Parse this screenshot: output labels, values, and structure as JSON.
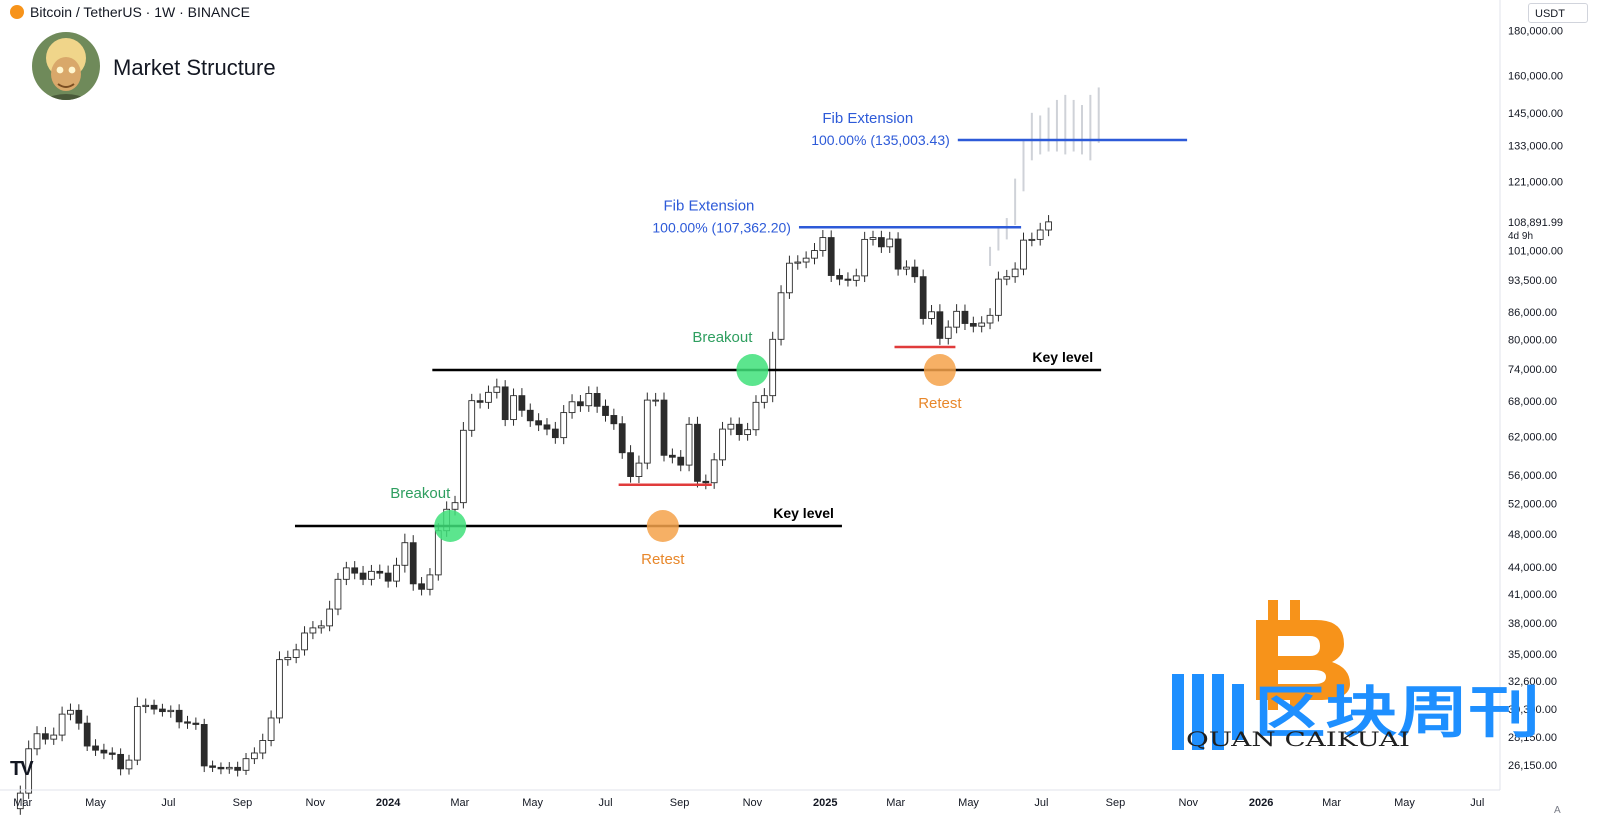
{
  "header": {
    "symbol": "Bitcoin / TetherUS · 1W · BINANCE",
    "title": "Market Structure",
    "unit": "USDT",
    "price_last": "108,891.99",
    "countdown": "4d 9h",
    "scale_badge": "A"
  },
  "watermark": {
    "brand": "区块周刊",
    "latin": "QUAN CAIKUAI"
  },
  "colors": {
    "fib": "#2d5ad8",
    "key_level": "#000000",
    "support": "#e03b3b",
    "breakout": "#3fe07a",
    "breakout_text": "#2e9e5f",
    "retest": "#f5a24a",
    "retest_text": "#e8872a",
    "candle_up": "#ffffff",
    "candle_down": "#2b2b2b"
  },
  "chart_data": {
    "type": "candlestick",
    "scale": "log",
    "ylim": [
      24500,
      195000
    ],
    "y_ticks": [
      {
        "value": 26150,
        "label": "26,150.00"
      },
      {
        "value": 28150,
        "label": "28,150.00"
      },
      {
        "value": 30300,
        "label": "30,300.00"
      },
      {
        "value": 32600,
        "label": "32,600.00"
      },
      {
        "value": 35000,
        "label": "35,000.00"
      },
      {
        "value": 38000,
        "label": "38,000.00"
      },
      {
        "value": 41000,
        "label": "41,000.00"
      },
      {
        "value": 44000,
        "label": "44,000.00"
      },
      {
        "value": 48000,
        "label": "48,000.00"
      },
      {
        "value": 52000,
        "label": "52,000.00"
      },
      {
        "value": 56000,
        "label": "56,000.00"
      },
      {
        "value": 62000,
        "label": "62,000.00"
      },
      {
        "value": 68000,
        "label": "68,000.00"
      },
      {
        "value": 74000,
        "label": "74,000.00"
      },
      {
        "value": 80000,
        "label": "80,000.00"
      },
      {
        "value": 86000,
        "label": "86,000.00"
      },
      {
        "value": 93500,
        "label": "93,500.00"
      },
      {
        "value": 101000,
        "label": "101,000.00"
      },
      {
        "value": 121000,
        "label": "121,000.00"
      },
      {
        "value": 133000,
        "label": "133,000.00"
      },
      {
        "value": 145000,
        "label": "145,000.00"
      },
      {
        "value": 160000,
        "label": "160,000.00"
      },
      {
        "value": 180000,
        "label": "180,000.00"
      }
    ],
    "x_ticks": [
      {
        "date": "2023-03-01",
        "label": "Mar",
        "bold": false
      },
      {
        "date": "2023-05-01",
        "label": "May",
        "bold": false
      },
      {
        "date": "2023-07-01",
        "label": "Jul",
        "bold": false
      },
      {
        "date": "2023-09-01",
        "label": "Sep",
        "bold": false
      },
      {
        "date": "2023-11-01",
        "label": "Nov",
        "bold": false
      },
      {
        "date": "2024-01-01",
        "label": "2024",
        "bold": true
      },
      {
        "date": "2024-03-01",
        "label": "Mar",
        "bold": false
      },
      {
        "date": "2024-05-01",
        "label": "May",
        "bold": false
      },
      {
        "date": "2024-07-01",
        "label": "Jul",
        "bold": false
      },
      {
        "date": "2024-09-01",
        "label": "Sep",
        "bold": false
      },
      {
        "date": "2024-11-01",
        "label": "Nov",
        "bold": false
      },
      {
        "date": "2025-01-01",
        "label": "2025",
        "bold": true
      },
      {
        "date": "2025-03-01",
        "label": "Mar",
        "bold": false
      },
      {
        "date": "2025-05-01",
        "label": "May",
        "bold": false
      },
      {
        "date": "2025-07-01",
        "label": "Jul",
        "bold": false
      },
      {
        "date": "2025-09-01",
        "label": "Sep",
        "bold": false
      },
      {
        "date": "2025-11-01",
        "label": "Nov",
        "bold": false
      },
      {
        "date": "2026-01-01",
        "label": "2026",
        "bold": true
      },
      {
        "date": "2026-03-01",
        "label": "Mar",
        "bold": false
      },
      {
        "date": "2026-05-01",
        "label": "May",
        "bold": false
      },
      {
        "date": "2026-07-01",
        "label": "Jul",
        "bold": false
      }
    ],
    "x_range": [
      "2023-02-10",
      "2026-07-20"
    ],
    "weekly_closes": [
      24300,
      27300,
      28400,
      28000,
      28300,
      29900,
      30200,
      29200,
      27500,
      27200,
      27000,
      26900,
      25900,
      26500,
      30500,
      30600,
      30300,
      30100,
      30200,
      29300,
      29200,
      29100,
      26100,
      26000,
      25900,
      26000,
      25800,
      26600,
      27000,
      27900,
      29600,
      34500,
      34700,
      35400,
      37000,
      37500,
      37700,
      39400,
      42600,
      43900,
      43300,
      42600,
      43500,
      43300,
      42400,
      44200,
      46900,
      42100,
      41500,
      43100,
      48400,
      51200,
      52100,
      63000,
      68100,
      67800,
      69600,
      70600,
      64800,
      69000,
      66400,
      64600,
      63900,
      63200,
      61800,
      66000,
      67900,
      67200,
      69400,
      67100,
      65500,
      64100,
      59400,
      55800,
      57800,
      68200,
      68200,
      59000,
      58700,
      57500,
      64000,
      55100,
      54900,
      58300,
      63200,
      64000,
      62300,
      63100,
      67800,
      69000,
      80000,
      90400,
      97700,
      98000,
      99000,
      101000,
      104500,
      94600,
      93700,
      93400,
      94500,
      104000,
      104500,
      102000,
      104100,
      96200,
      96700,
      94300,
      84500,
      86000,
      80200,
      82600,
      86100,
      83400,
      82800,
      83500,
      85200,
      93700,
      94300,
      96200,
      103800,
      104000,
      106600,
      108900
    ],
    "wick_span": [
      [
        2,
        1.6
      ],
      [
        2.2,
        1.5
      ],
      [
        2,
        1.7
      ],
      [
        1.8,
        1.4
      ],
      [
        2,
        1.5
      ],
      [
        2,
        1.6
      ],
      [
        1.8,
        1.6
      ],
      [
        1.6,
        1.7
      ],
      [
        2,
        1.3
      ],
      [
        1.8,
        1.5
      ],
      [
        1.7,
        1.6
      ],
      [
        1.5,
        1.4
      ],
      [
        1.6,
        1.7
      ],
      [
        1.4,
        1.5
      ],
      [
        2.4,
        1.3
      ],
      [
        1.8,
        1.7
      ],
      [
        1.5,
        1.4
      ],
      [
        1.4,
        1.3
      ],
      [
        1.3,
        1.6
      ],
      [
        1.6,
        1.7
      ],
      [
        1.6,
        1.5
      ],
      [
        1.5,
        1.4
      ],
      [
        1.5,
        1.6
      ],
      [
        1.4,
        1.2
      ],
      [
        1.3,
        1.4
      ],
      [
        1.4,
        1.3
      ],
      [
        1.5,
        1.6
      ],
      [
        1.5,
        1.2
      ],
      [
        1.5,
        1.4
      ],
      [
        1.8,
        1.6
      ],
      [
        2,
        1.5
      ],
      [
        2.2,
        1.4
      ],
      [
        1.8,
        1.6
      ],
      [
        1.6,
        1.5
      ],
      [
        1.8,
        1.5
      ],
      [
        1.8,
        1.6
      ],
      [
        1.5,
        1.5
      ],
      [
        2.2,
        1.4
      ],
      [
        1.7,
        1.6
      ],
      [
        1.6,
        1.5
      ],
      [
        1.8,
        1.6
      ],
      [
        1.9,
        1.5
      ],
      [
        1.7,
        1.6
      ],
      [
        1.8,
        1.5
      ],
      [
        2,
        1.7
      ],
      [
        2,
        1.6
      ],
      [
        2.4,
        1.9
      ],
      [
        2,
        1.8
      ],
      [
        1.8,
        1.6
      ],
      [
        1.8,
        1.6
      ],
      [
        2,
        1.5
      ],
      [
        2.1,
        1.6
      ],
      [
        1.8,
        1.6
      ],
      [
        2.2,
        1.5
      ],
      [
        1.8,
        1.7
      ],
      [
        1.9,
        1.6
      ],
      [
        1.8,
        1.7
      ],
      [
        2.2,
        1.6
      ],
      [
        1.8,
        1.7
      ],
      [
        1.9,
        1.6
      ],
      [
        2,
        1.7
      ],
      [
        1.8,
        1.6
      ],
      [
        2,
        1.6
      ],
      [
        1.8,
        1.6
      ],
      [
        1.9,
        1.6
      ],
      [
        2,
        1.7
      ],
      [
        2,
        1.6
      ],
      [
        1.8,
        1.6
      ],
      [
        1.9,
        1.6
      ],
      [
        1.8,
        1.7
      ],
      [
        1.8,
        1.6
      ],
      [
        1.8,
        1.6
      ],
      [
        2,
        1.6
      ],
      [
        2,
        1.6
      ],
      [
        2,
        1.7
      ],
      [
        2,
        1.6
      ],
      [
        1.9,
        1.6
      ],
      [
        2,
        1.6
      ],
      [
        1.8,
        1.6
      ],
      [
        1.9,
        1.6
      ],
      [
        1.9,
        1.6
      ],
      [
        2,
        1.6
      ],
      [
        1.8,
        1.7
      ],
      [
        1.8,
        1.6
      ],
      [
        1.9,
        1.6
      ],
      [
        1.8,
        1.6
      ],
      [
        1.8,
        1.6
      ],
      [
        1.8,
        1.6
      ],
      [
        1.9,
        1.6
      ],
      [
        2,
        1.6
      ],
      [
        2,
        1.7
      ],
      [
        2,
        1.6
      ],
      [
        2,
        1.6
      ],
      [
        1.8,
        1.7
      ],
      [
        1.8,
        1.6
      ],
      [
        2,
        1.6
      ],
      [
        2,
        1.6
      ],
      [
        1.9,
        1.7
      ],
      [
        1.8,
        1.6
      ],
      [
        1.8,
        1.6
      ],
      [
        1.9,
        1.6
      ],
      [
        2,
        1.6
      ],
      [
        1.8,
        1.6
      ],
      [
        1.8,
        1.6
      ],
      [
        1.9,
        1.6
      ],
      [
        1.8,
        1.7
      ],
      [
        1.8,
        1.6
      ],
      [
        2,
        1.6
      ],
      [
        1.9,
        1.6
      ],
      [
        1.8,
        1.6
      ],
      [
        2,
        1.7
      ],
      [
        1.8,
        1.6
      ],
      [
        1.9,
        1.6
      ],
      [
        1.8,
        1.7
      ],
      [
        1.8,
        1.6
      ],
      [
        1.8,
        1.6
      ],
      [
        1.9,
        1.6
      ],
      [
        2,
        1.6
      ],
      [
        1.8,
        1.6
      ],
      [
        1.8,
        1.6
      ],
      [
        2,
        1.6
      ],
      [
        1.8,
        1.6
      ],
      [
        1.9,
        1.6
      ],
      [
        1.8,
        1.6
      ]
    ],
    "projection": {
      "lows": [
        97000,
        101000,
        104000,
        108000,
        118000,
        128000,
        130000,
        131000,
        131000,
        130000,
        131000,
        130000,
        128000,
        134000
      ],
      "highs": [
        102000,
        107500,
        110000,
        122000,
        135000,
        145000,
        144000,
        147000,
        150000,
        152000,
        150000,
        148000,
        152000,
        155000
      ]
    },
    "key_levels": [
      {
        "price": 49000,
        "from": "2023-10-15",
        "to": "2025-01-15",
        "label": "Key level"
      },
      {
        "price": 73800,
        "from": "2024-02-07",
        "to": "2025-08-20",
        "label": "Key level"
      }
    ],
    "support_lines": [
      {
        "price": 54600,
        "from": "2024-07-12",
        "to": "2024-09-28"
      },
      {
        "price": 78400,
        "from": "2025-02-28",
        "to": "2025-04-20"
      }
    ],
    "fib_levels": [
      {
        "price": 107362.2,
        "from": "2024-12-10",
        "to": "2025-06-14",
        "label": "Fib Extension",
        "value_label": "100.00% (107,362.20)"
      },
      {
        "price": 135003.43,
        "from": "2025-04-22",
        "to": "2025-10-31",
        "label": "Fib Extension",
        "value_label": "100.00% (135,003.43)"
      }
    ],
    "annotations": [
      {
        "kind": "breakout",
        "date": "2024-02-22",
        "price": 49000,
        "text": "Breakout",
        "text_pos": "above"
      },
      {
        "kind": "breakout",
        "date": "2024-11-01",
        "price": 73800,
        "text": "Breakout",
        "text_pos": "above"
      },
      {
        "kind": "retest",
        "date": "2024-08-18",
        "price": 49000,
        "text": "Retest",
        "text_pos": "below"
      },
      {
        "kind": "retest",
        "date": "2025-04-07",
        "price": 73800,
        "text": "Retest",
        "text_pos": "below"
      }
    ],
    "first_candle": "2023-02-27"
  }
}
